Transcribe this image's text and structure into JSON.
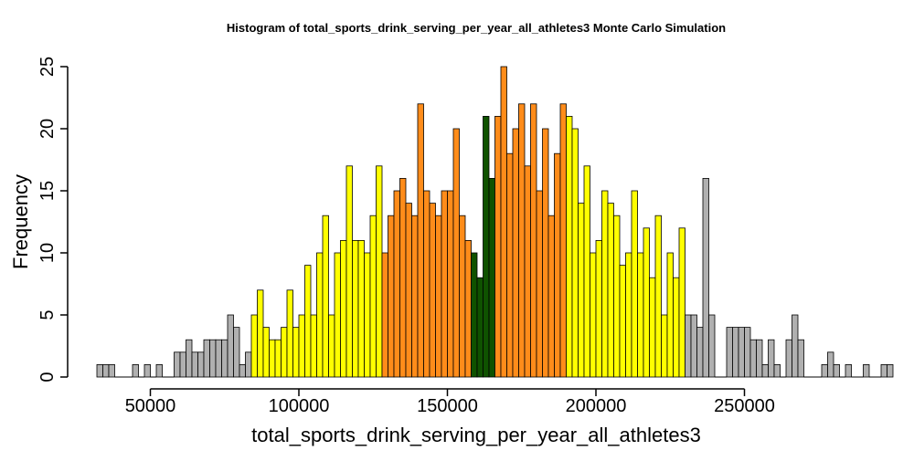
{
  "chart_data": {
    "type": "bar",
    "title": "Histogram of  total_sports_drink_serving_per_year_all_athletes3  Monte Carlo Simulation",
    "xlabel": "total_sports_drink_serving_per_year_all_athletes3",
    "ylabel": "Frequency",
    "xlim": [
      32000,
      288000
    ],
    "ylim": [
      0,
      25
    ],
    "x_ticks": [
      50000,
      100000,
      150000,
      200000,
      250000
    ],
    "x_tick_labels": [
      "50000",
      "100000",
      "150000",
      "200000",
      "250000"
    ],
    "y_ticks": [
      0,
      5,
      10,
      15,
      20,
      25
    ],
    "y_tick_labels": [
      "0",
      "5",
      "10",
      "15",
      "20",
      "25"
    ],
    "bin_width": 2000,
    "bin_start": 32000,
    "counts": [
      1,
      1,
      1,
      0,
      0,
      0,
      1,
      0,
      1,
      0,
      1,
      0,
      0,
      2,
      2,
      3,
      2,
      2,
      3,
      3,
      3,
      3,
      5,
      4,
      1,
      2,
      5,
      7,
      4,
      3,
      3,
      4,
      7,
      4,
      5,
      9,
      5,
      10,
      13,
      5,
      10,
      11,
      17,
      11,
      11,
      10,
      13,
      17,
      10,
      13,
      15,
      16,
      14,
      13,
      22,
      15,
      14,
      13,
      15,
      15,
      20,
      13,
      11,
      10,
      8,
      21,
      16,
      21,
      25,
      18,
      20,
      22,
      17,
      22,
      15,
      20,
      13,
      18,
      22,
      21,
      20,
      14,
      17,
      10,
      11,
      15,
      14,
      13,
      9,
      10,
      15,
      10,
      12,
      8,
      13,
      5,
      10,
      8,
      12,
      5,
      5,
      4,
      16,
      5,
      0,
      0,
      4,
      4,
      4,
      4,
      3,
      3,
      1,
      3,
      1,
      0,
      3,
      5,
      3,
      0,
      0,
      0,
      1,
      2,
      1,
      0,
      1,
      0,
      0,
      1,
      0,
      0,
      1,
      1
    ],
    "colors": {
      "outer": "#b0b0b0",
      "mid": "#ffff00",
      "inner": "#ff8c1a",
      "center": "#0f5200",
      "edge": "#000000"
    },
    "color_bands": {
      "mid_range": [
        84000,
        128000,
        190000,
        230000
      ],
      "inner_range": [
        128000,
        157000,
        166000,
        190000
      ],
      "center_range": [
        157000,
        166000
      ]
    }
  }
}
